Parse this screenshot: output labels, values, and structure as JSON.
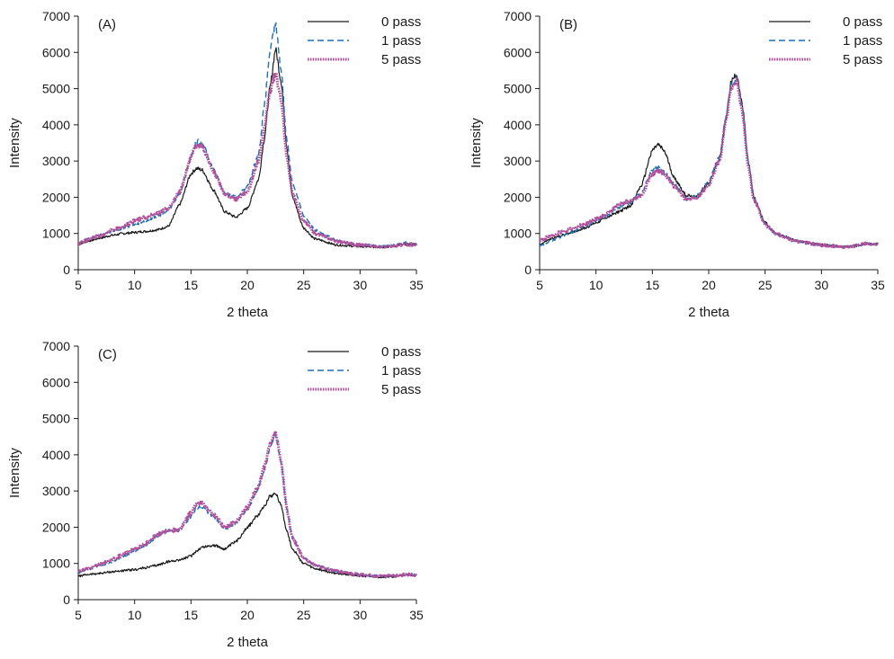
{
  "series_styles": [
    {
      "name": "0 pass",
      "color": "#1a1a1a",
      "dash": "",
      "width": 1.2
    },
    {
      "name": "1 pass",
      "color": "#1f6fb2",
      "dash": "7,4",
      "width": 1.4
    },
    {
      "name": "5 pass",
      "color": "#b0509c",
      "dash": "1.6,1.2",
      "width": 3.0
    }
  ],
  "chart_data": [
    {
      "type": "line",
      "panel_label": "(A)",
      "xlabel": "2 theta",
      "ylabel": "Intensity",
      "xlim": [
        5,
        35
      ],
      "ylim": [
        0,
        7000
      ],
      "xticks": [
        5,
        10,
        15,
        20,
        25,
        30,
        35
      ],
      "yticks": [
        0,
        1000,
        2000,
        3000,
        4000,
        5000,
        6000,
        7000
      ],
      "legend_position": "top-right",
      "x": [
        5,
        6,
        7,
        8,
        9,
        10,
        11,
        12,
        13,
        14,
        15,
        15.5,
        16,
        17,
        18,
        19,
        20,
        21,
        21.5,
        22,
        22.5,
        23,
        23.5,
        24,
        25,
        26,
        28,
        30,
        32,
        33,
        34,
        35
      ],
      "series": [
        {
          "name": "0 pass",
          "values": [
            700,
            800,
            880,
            950,
            1000,
            1030,
            1060,
            1100,
            1200,
            1800,
            2650,
            2800,
            2750,
            2200,
            1600,
            1450,
            1700,
            2500,
            3600,
            5000,
            6100,
            5200,
            3400,
            2000,
            1150,
            850,
            680,
            640,
            620,
            650,
            700,
            700
          ]
        },
        {
          "name": "1 pass",
          "values": [
            720,
            860,
            960,
            1050,
            1150,
            1250,
            1350,
            1480,
            1650,
            2100,
            3100,
            3550,
            3500,
            2800,
            2100,
            2000,
            2300,
            3200,
            4500,
            6000,
            6800,
            5500,
            3600,
            2400,
            1500,
            1100,
            800,
            700,
            650,
            680,
            750,
            700
          ]
        },
        {
          "name": "5 pass",
          "values": [
            720,
            850,
            950,
            1080,
            1200,
            1350,
            1450,
            1550,
            1700,
            2150,
            3100,
            3450,
            3400,
            2700,
            2100,
            1950,
            2150,
            3000,
            3900,
            4900,
            5400,
            4700,
            3100,
            2100,
            1350,
            1000,
            780,
            680,
            640,
            660,
            700,
            680
          ]
        }
      ]
    },
    {
      "type": "line",
      "panel_label": "(B)",
      "xlabel": "2 theta",
      "ylabel": "Intensity",
      "xlim": [
        5,
        35
      ],
      "ylim": [
        0,
        7000
      ],
      "xticks": [
        5,
        10,
        15,
        20,
        25,
        30,
        35
      ],
      "yticks": [
        0,
        1000,
        2000,
        3000,
        4000,
        5000,
        6000,
        7000
      ],
      "legend_position": "top-right",
      "x": [
        5,
        6,
        7,
        8,
        9,
        10,
        11,
        12,
        13,
        14,
        15,
        15.5,
        16,
        17,
        18,
        19,
        20,
        21,
        21.5,
        22,
        22.5,
        23,
        23.5,
        24,
        25,
        26,
        28,
        30,
        32,
        33,
        34,
        35
      ],
      "series": [
        {
          "name": "0 pass",
          "values": [
            700,
            850,
            950,
            1050,
            1150,
            1300,
            1450,
            1600,
            1750,
            2300,
            3300,
            3450,
            3300,
            2500,
            2050,
            2000,
            2400,
            3100,
            4100,
            5200,
            5400,
            4500,
            3000,
            2000,
            1300,
            1000,
            780,
            690,
            630,
            660,
            720,
            700
          ]
        },
        {
          "name": "1 pass",
          "values": [
            650,
            800,
            920,
            1050,
            1200,
            1350,
            1500,
            1700,
            1850,
            2100,
            2750,
            2850,
            2700,
            2350,
            1950,
            2050,
            2450,
            3150,
            4200,
            5100,
            5300,
            4400,
            2950,
            1950,
            1250,
            980,
            770,
            680,
            630,
            660,
            720,
            700
          ]
        },
        {
          "name": "5 pass",
          "values": [
            800,
            950,
            1050,
            1150,
            1250,
            1400,
            1550,
            1800,
            1900,
            2050,
            2650,
            2750,
            2650,
            2300,
            1950,
            2000,
            2350,
            3050,
            4100,
            5000,
            5200,
            4300,
            2900,
            1950,
            1250,
            980,
            770,
            680,
            630,
            660,
            720,
            700
          ]
        }
      ]
    },
    {
      "type": "line",
      "panel_label": "(C)",
      "xlabel": "2 theta",
      "ylabel": "Intensity",
      "xlim": [
        5,
        35
      ],
      "ylim": [
        0,
        7000
      ],
      "xticks": [
        5,
        10,
        15,
        20,
        25,
        30,
        35
      ],
      "yticks": [
        0,
        1000,
        2000,
        3000,
        4000,
        5000,
        6000,
        7000
      ],
      "legend_position": "top-right",
      "x": [
        5,
        6,
        7,
        8,
        9,
        10,
        11,
        12,
        13,
        14,
        15,
        15.5,
        16,
        17,
        18,
        19,
        20,
        21,
        21.5,
        22,
        22.5,
        23,
        23.5,
        24,
        25,
        26,
        28,
        30,
        32,
        33,
        34,
        35
      ],
      "series": [
        {
          "name": "0 pass",
          "values": [
            650,
            700,
            730,
            770,
            800,
            830,
            880,
            950,
            1050,
            1100,
            1200,
            1350,
            1450,
            1500,
            1400,
            1600,
            2000,
            2350,
            2600,
            2850,
            2950,
            2600,
            1900,
            1400,
            1000,
            850,
            720,
            660,
            620,
            640,
            680,
            680
          ]
        },
        {
          "name": "1 pass",
          "values": [
            750,
            850,
            950,
            1050,
            1200,
            1350,
            1500,
            1750,
            1900,
            1900,
            2300,
            2550,
            2550,
            2300,
            1950,
            2100,
            2500,
            3100,
            3600,
            4200,
            4550,
            3800,
            2500,
            1700,
            1150,
            950,
            780,
            690,
            650,
            660,
            690,
            680
          ]
        },
        {
          "name": "5 pass",
          "values": [
            780,
            880,
            980,
            1100,
            1250,
            1400,
            1550,
            1800,
            1900,
            1950,
            2400,
            2650,
            2650,
            2350,
            2000,
            2150,
            2550,
            3150,
            3650,
            4250,
            4600,
            3800,
            2500,
            1700,
            1150,
            950,
            780,
            690,
            650,
            660,
            690,
            680
          ]
        }
      ]
    }
  ]
}
